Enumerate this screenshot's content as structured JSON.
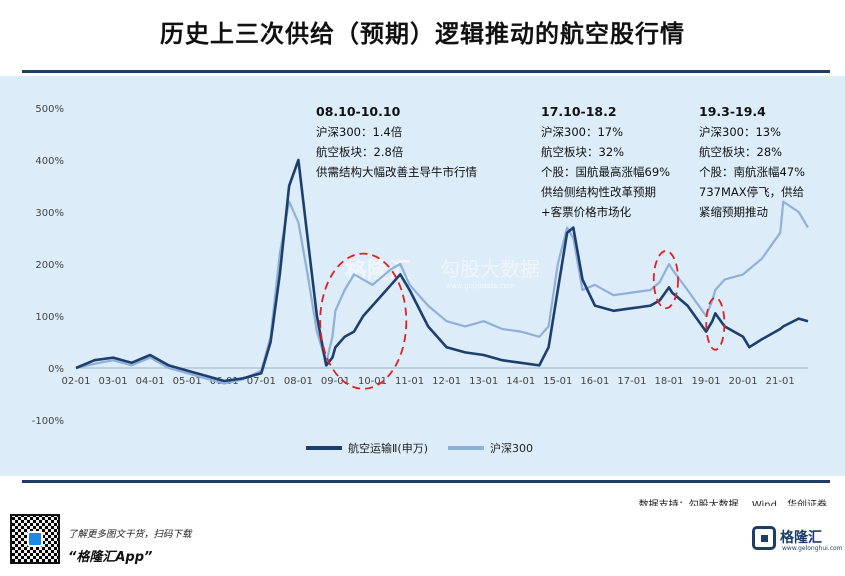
{
  "title": "历史上三次供给（预期）逻辑推动的航空股行情",
  "annotations": [
    {
      "head": "08.10-10.10",
      "lines": [
        "沪深300：1.4倍",
        "航空板块：2.8倍",
        "供需结构大幅改善主导牛市行情"
      ]
    },
    {
      "head": "17.10-18.2",
      "lines": [
        "沪深300：17%",
        "航空板块：32%",
        "个股：国航最高涨幅69%",
        "供给侧结构性改革预期",
        "+客票价格市场化"
      ]
    },
    {
      "head": "19.3-19.4",
      "lines": [
        "沪深300：13%",
        "航空板块：28%",
        "个股：南航涨幅47%",
        "737MAX停飞，供给",
        "紧缩预期推动"
      ]
    }
  ],
  "watermark": {
    "name": "格隆汇",
    "brand": "勾股大数据",
    "url": "www.gogudata.com"
  },
  "source": "数据支持：勾股大数据 、Wind、华创证券",
  "footer": {
    "promo_sub": "了解更多图文干货，扫码下载",
    "promo_main": "“格隆汇App”",
    "logo_text": "格隆汇",
    "logo_url": "www.gelonghui.com"
  },
  "colors": {
    "airline": "#1d3f6e",
    "csi300": "#8fb0d8",
    "highlight": "#e02020",
    "rule": "#1f3e66",
    "background": "#dcecf8"
  },
  "chart_data": {
    "type": "line",
    "x": [
      "02-01",
      "02-07",
      "03-01",
      "03-07",
      "04-01",
      "04-07",
      "05-01",
      "05-07",
      "06-01",
      "06-07",
      "07-01",
      "07-04",
      "07-07",
      "07-10",
      "08-01",
      "08-04",
      "08-07",
      "08-10",
      "08-12",
      "09-01",
      "09-04",
      "09-07",
      "09-10",
      "10-01",
      "10-04",
      "10-07",
      "10-10",
      "11-01",
      "11-07",
      "12-01",
      "12-07",
      "13-01",
      "13-07",
      "14-01",
      "14-07",
      "14-10",
      "15-01",
      "15-04",
      "15-06",
      "15-09",
      "16-01",
      "16-07",
      "17-01",
      "17-07",
      "17-10",
      "18-01",
      "18-02",
      "18-07",
      "19-01",
      "19-03",
      "19-04",
      "19-07",
      "20-01",
      "20-03",
      "20-07",
      "21-01",
      "21-02",
      "21-07",
      "21-10"
    ],
    "series": [
      {
        "name": "航空运输Ⅱ(申万)",
        "values": [
          0,
          15,
          20,
          10,
          25,
          5,
          -5,
          -15,
          -25,
          -20,
          -10,
          50,
          180,
          350,
          400,
          250,
          100,
          5,
          20,
          40,
          60,
          70,
          100,
          120,
          140,
          160,
          180,
          150,
          80,
          40,
          30,
          25,
          15,
          10,
          5,
          40,
          150,
          260,
          270,
          170,
          120,
          110,
          115,
          120,
          130,
          155,
          145,
          120,
          70,
          90,
          105,
          80,
          60,
          40,
          55,
          75,
          80,
          95,
          90
        ]
      },
      {
        "name": "沪深300",
        "values": [
          0,
          8,
          15,
          5,
          20,
          0,
          -10,
          -20,
          -30,
          -22,
          -5,
          60,
          220,
          320,
          280,
          180,
          70,
          10,
          60,
          110,
          150,
          180,
          170,
          160,
          175,
          190,
          200,
          160,
          120,
          90,
          80,
          90,
          75,
          70,
          60,
          80,
          200,
          270,
          250,
          150,
          160,
          140,
          145,
          150,
          165,
          200,
          190,
          150,
          100,
          130,
          150,
          170,
          180,
          190,
          210,
          260,
          320,
          300,
          270
        ]
      }
    ],
    "y_ticks": [
      "500%",
      "400%",
      "300%",
      "200%",
      "100%",
      "0%",
      "-100%"
    ],
    "x_ticks": [
      "02-01",
      "03-01",
      "04-01",
      "05-01",
      "06-01",
      "07-01",
      "08-01",
      "09-01",
      "10-01",
      "11-01",
      "12-01",
      "13-01",
      "14-01",
      "15-01",
      "16-01",
      "17-01",
      "18-01",
      "19-01",
      "20-01",
      "21-01"
    ],
    "ylim": [
      -100,
      500
    ],
    "legend_position": "bottom-center",
    "grid": false,
    "highlight_periods": [
      "08.10-10.10",
      "17.10-18.2",
      "19.3-19.4"
    ]
  }
}
